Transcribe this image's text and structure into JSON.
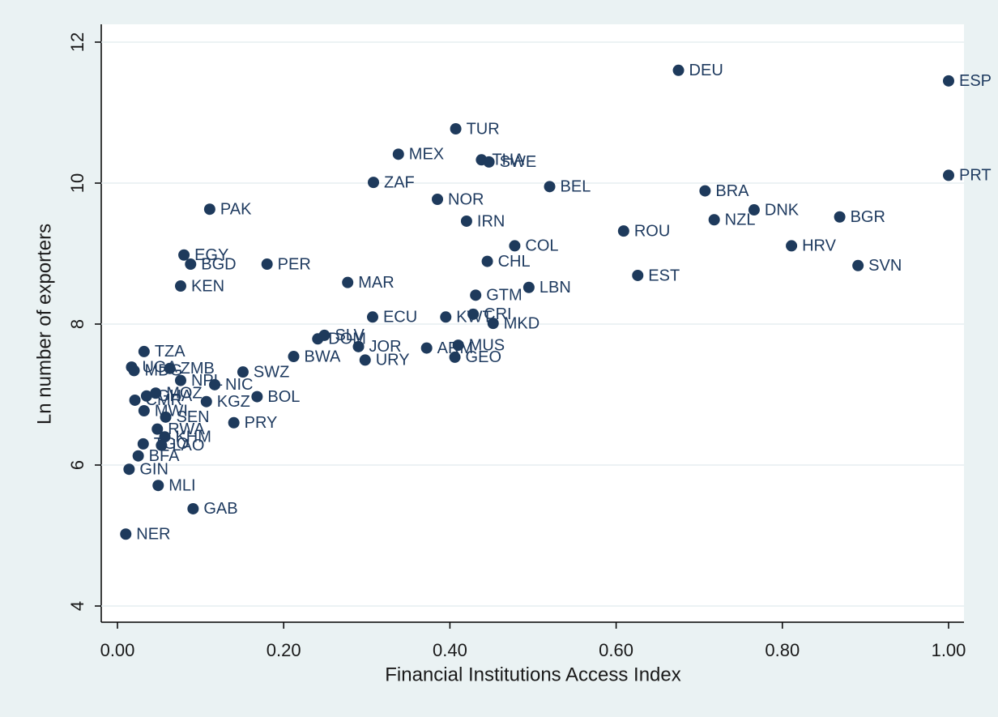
{
  "chart_data": {
    "type": "scatter",
    "x_label": "Financial Institutions Access Index",
    "y_label": "Ln number of exporters",
    "color": "#1e3a5c",
    "grid": true,
    "xlim": [
      0,
      1
    ],
    "ylim": [
      4,
      12
    ],
    "xticks": [
      {
        "value": 0,
        "label": "0.00"
      },
      {
        "value": 0.2,
        "label": "0.20"
      },
      {
        "value": 0.4,
        "label": "0.40"
      },
      {
        "value": 0.6,
        "label": "0.60"
      },
      {
        "value": 0.8,
        "label": "0.80"
      },
      {
        "value": 1,
        "label": "1.00"
      }
    ],
    "yticks": [
      4,
      6,
      8,
      10,
      12
    ],
    "labels": [
      "DEU",
      "ESP",
      "PRT",
      "TUR",
      "MEX",
      "THA",
      "SWE",
      "ZAF",
      "BEL",
      "NOR",
      "BRA",
      "DNK",
      "NZL",
      "BGR",
      "PAK",
      "IRN",
      "ROU",
      "COL",
      "HRV",
      "EGY",
      "BGD",
      "PER",
      "CHL",
      "SVN",
      "EST",
      "KEN",
      "MAR",
      "LBN",
      "GTM",
      "ECU",
      "KWT",
      "CRI",
      "MKD",
      "DOM",
      "SLV",
      "JOR",
      "URY",
      "BWA",
      "ARM",
      "MUS",
      "GEO",
      "TZA",
      "SWZ",
      "UGA",
      "MDG",
      "ZMB",
      "NPL",
      "NIC",
      "KGZ",
      "BOL",
      "CMR",
      "GHA",
      "MOZ",
      "MWI",
      "SEN",
      "PRY",
      "RWA",
      "KHM",
      "LAO",
      "TGO",
      "BFA",
      "GIN",
      "MLI",
      "GAB",
      "NER"
    ],
    "x": [
      0.675,
      1.0,
      1.0,
      0.407,
      0.338,
      0.438,
      0.447,
      0.308,
      0.52,
      0.385,
      0.707,
      0.766,
      0.718,
      0.869,
      0.111,
      0.42,
      0.609,
      0.478,
      0.811,
      0.08,
      0.088,
      0.18,
      0.445,
      0.891,
      0.626,
      0.076,
      0.277,
      0.495,
      0.431,
      0.307,
      0.395,
      0.428,
      0.452,
      0.241,
      0.249,
      0.29,
      0.298,
      0.212,
      0.372,
      0.41,
      0.406,
      0.032,
      0.151,
      0.017,
      0.02,
      0.063,
      0.076,
      0.117,
      0.107,
      0.168,
      0.021,
      0.035,
      0.046,
      0.032,
      0.058,
      0.14,
      0.048,
      0.057,
      0.053,
      0.031,
      0.025,
      0.014,
      0.049,
      0.091,
      0.01
    ],
    "values": [
      11.6,
      11.45,
      10.11,
      10.77,
      10.41,
      10.33,
      10.3,
      10.01,
      9.95,
      9.77,
      9.89,
      9.62,
      9.48,
      9.52,
      9.63,
      9.46,
      9.32,
      9.11,
      9.11,
      8.98,
      8.85,
      8.85,
      8.89,
      8.83,
      8.69,
      8.54,
      8.59,
      8.52,
      8.41,
      8.1,
      8.1,
      8.14,
      8.01,
      7.79,
      7.84,
      7.68,
      7.49,
      7.54,
      7.66,
      7.7,
      7.53,
      7.61,
      7.32,
      7.39,
      7.34,
      7.37,
      7.2,
      7.14,
      6.9,
      6.97,
      6.92,
      6.98,
      7.02,
      6.77,
      6.68,
      6.6,
      6.51,
      6.4,
      6.28,
      6.3,
      6.13,
      5.94,
      5.71,
      5.38,
      5.02
    ]
  }
}
